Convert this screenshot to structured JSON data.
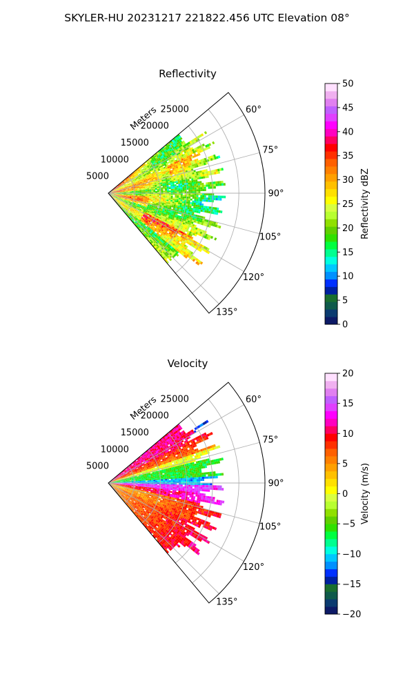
{
  "figure_title": "SKYLER-HU  20231217  221822.456 UTC Elevation 08°",
  "chart_data": [
    {
      "type": "heatmap",
      "projection": "polar-sector",
      "title": "Reflectivity",
      "range_label": "Meters",
      "range_ticks": [
        5000,
        10000,
        15000,
        20000,
        25000
      ],
      "range_tick_labels": [
        "5000",
        "10000",
        "15000",
        "20000",
        "25000"
      ],
      "range_max": 30000,
      "data_range_max": 22500,
      "theta_range_deg": [
        50,
        140
      ],
      "theta_ticks": [
        60,
        75,
        90,
        105,
        120,
        135
      ],
      "theta_tick_labels": [
        "60°",
        "75°",
        "90°",
        "105°",
        "120°",
        "135°"
      ],
      "grid": true,
      "colorbar": {
        "label": "Reflectivity dBZ",
        "range": [
          0,
          50
        ],
        "ticks": [
          0,
          5,
          10,
          15,
          20,
          25,
          30,
          35,
          40,
          45,
          50
        ],
        "tick_labels": [
          "0",
          "5",
          "10",
          "15",
          "20",
          "25",
          "30",
          "35",
          "40",
          "45",
          "50"
        ],
        "colors": [
          "#0d1a66",
          "#0b3b70",
          "#0f5a4a",
          "#1a6e2e",
          "#0020a0",
          "#0030ff",
          "#0090ff",
          "#00c8ff",
          "#00ffe0",
          "#00ff90",
          "#00ff40",
          "#30e000",
          "#60d000",
          "#90e000",
          "#b8ff30",
          "#d8ff40",
          "#ffff00",
          "#ffe000",
          "#ffc000",
          "#ffa000",
          "#ff8000",
          "#ff6000",
          "#ff3000",
          "#ff0000",
          "#ff0060",
          "#ff00c0",
          "#ff00ff",
          "#e040ff",
          "#c060ff",
          "#e080f0",
          "#f0b0f0",
          "#ffe0ff"
        ]
      }
    },
    {
      "type": "heatmap",
      "projection": "polar-sector",
      "title": "Velocity",
      "range_label": "Meters",
      "range_ticks": [
        5000,
        10000,
        15000,
        20000,
        25000
      ],
      "range_tick_labels": [
        "5000",
        "10000",
        "15000",
        "20000",
        "25000"
      ],
      "range_max": 30000,
      "data_range_max": 22500,
      "theta_range_deg": [
        50,
        140
      ],
      "theta_ticks": [
        60,
        75,
        90,
        105,
        120,
        135
      ],
      "theta_tick_labels": [
        "60°",
        "75°",
        "90°",
        "105°",
        "120°",
        "135°"
      ],
      "grid": true,
      "colorbar": {
        "label": "Velocity (m/s)",
        "range": [
          -20,
          20
        ],
        "ticks": [
          -20,
          -15,
          -10,
          -5,
          0,
          5,
          10,
          15,
          20
        ],
        "tick_labels": [
          "−20",
          "−15",
          "−10",
          "−5",
          "0",
          "5",
          "10",
          "15",
          "20"
        ],
        "colors": [
          "#0d1a66",
          "#0b3b70",
          "#0f5a4a",
          "#1a6e2e",
          "#0020a0",
          "#0030ff",
          "#0090ff",
          "#00c8ff",
          "#00ffe0",
          "#00ff90",
          "#00ff40",
          "#30e000",
          "#60d000",
          "#90e000",
          "#b8ff30",
          "#d8ff40",
          "#ffff00",
          "#ffe000",
          "#ffc000",
          "#ffa000",
          "#ff8000",
          "#ff6000",
          "#ff3000",
          "#ff0000",
          "#ff0060",
          "#ff00c0",
          "#ff00ff",
          "#e040ff",
          "#c060ff",
          "#e080f0",
          "#f0b0f0",
          "#ffe0ff"
        ]
      }
    }
  ]
}
